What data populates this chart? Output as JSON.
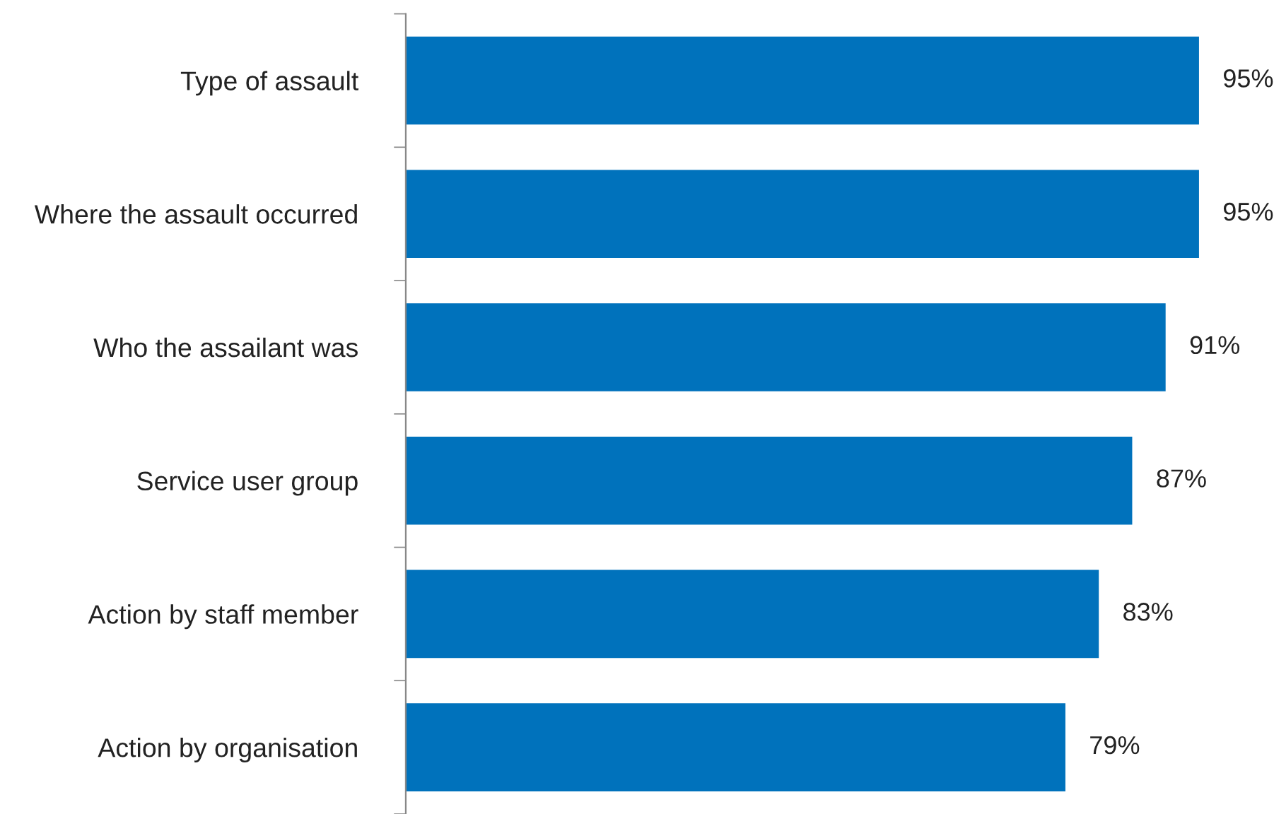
{
  "chart_data": {
    "type": "bar",
    "orientation": "horizontal",
    "categories": [
      "Type of assault",
      "Where the assault occurred",
      "Who the assailant was",
      "Service user group",
      "Action by staff member",
      "Action by organisation"
    ],
    "values": [
      95,
      95,
      91,
      87,
      83,
      79
    ],
    "value_labels": [
      "95%",
      "95%",
      "91%",
      "87%",
      "83%",
      "79%"
    ],
    "color": "#0072bc",
    "tick_labels": "y",
    "grid": false,
    "legend": false
  }
}
